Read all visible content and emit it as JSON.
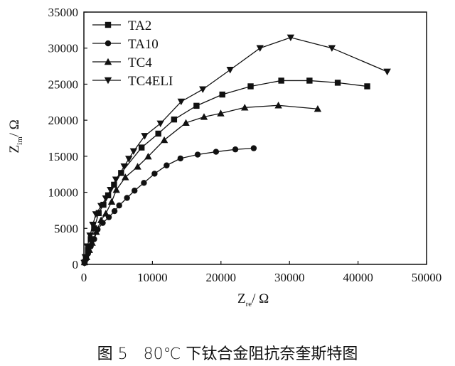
{
  "chart_data": {
    "type": "line",
    "title": "",
    "xlabel": {
      "main": "Z",
      "sub": "re",
      "unit": "/ Ω"
    },
    "ylabel": {
      "main": "Z",
      "sub": "im",
      "unit": "/ Ω"
    },
    "xlim": [
      0,
      50000
    ],
    "ylim": [
      0,
      35000
    ],
    "xticks": [
      "0",
      "10000",
      "20000",
      "30000",
      "40000",
      "50000"
    ],
    "yticks": [
      "0",
      "5000",
      "10000",
      "15000",
      "20000",
      "25000",
      "30000",
      "35000"
    ],
    "grid": false,
    "legend_position": "top-left",
    "series": [
      {
        "name": "TA2",
        "marker": "square",
        "x": [
          100,
          300,
          600,
          1000,
          1500,
          2160,
          2850,
          3540,
          4400,
          5430,
          8420,
          10860,
          13160,
          16430,
          20200,
          24330,
          28800,
          32920,
          37040,
          41340
        ],
        "y": [
          300,
          1000,
          2000,
          3500,
          5000,
          7120,
          8270,
          9580,
          11050,
          12680,
          16210,
          18140,
          20100,
          22000,
          23560,
          24700,
          25490,
          25490,
          25200,
          24700
        ]
      },
      {
        "name": "TA10",
        "marker": "circle",
        "x": [
          100,
          300,
          600,
          1000,
          1500,
          2000,
          2750,
          3640,
          4470,
          5150,
          6290,
          7390,
          8760,
          10310,
          12070,
          14090,
          16600,
          19280,
          22100,
          24780
        ],
        "y": [
          200,
          700,
          1500,
          2500,
          3500,
          4840,
          5750,
          6540,
          7390,
          8170,
          9220,
          10230,
          11310,
          12580,
          13730,
          14700,
          15230,
          15620,
          15950,
          16110
        ]
      },
      {
        "name": "TC4",
        "marker": "triangle-up",
        "x": [
          100,
          400,
          800,
          1200,
          1800,
          2510,
          3200,
          4050,
          4740,
          6050,
          7840,
          9380,
          11730,
          14890,
          17530,
          19970,
          23470,
          28380,
          34120
        ],
        "y": [
          300,
          1000,
          2000,
          3000,
          4500,
          6140,
          7060,
          8690,
          10330,
          12090,
          13560,
          14970,
          17250,
          19640,
          20460,
          20950,
          21760,
          22060,
          21570
        ]
      },
      {
        "name": "TC4ELI",
        "marker": "triangle-down",
        "x": [
          50,
          200,
          500,
          900,
          1300,
          1750,
          2510,
          3200,
          3880,
          4670,
          5880,
          6560,
          7250,
          8870,
          11170,
          14190,
          17350,
          21340,
          25700,
          30170,
          36190,
          44260
        ],
        "y": [
          200,
          1000,
          2500,
          4000,
          5500,
          6960,
          8100,
          9150,
          10330,
          11760,
          13590,
          14640,
          15690,
          17810,
          19540,
          22580,
          24280,
          26990,
          30000,
          31470,
          30000,
          26730
        ]
      }
    ]
  },
  "caption": "图 5　80℃ 下钛合金阻抗奈奎斯特图"
}
